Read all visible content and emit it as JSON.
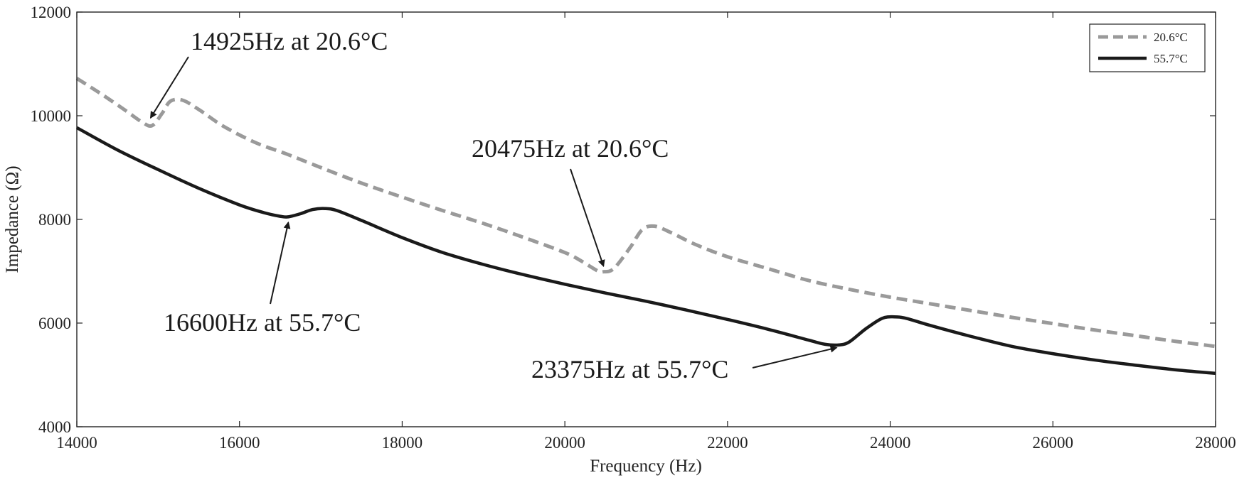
{
  "chart_data": {
    "type": "line",
    "title": "",
    "xlabel": "Frequency (Hz)",
    "ylabel": "Impedance (Ω)",
    "xlim": [
      14000,
      28000
    ],
    "ylim": [
      4000,
      12000
    ],
    "xticks": [
      14000,
      16000,
      18000,
      20000,
      22000,
      24000,
      26000,
      28000
    ],
    "yticks": [
      4000,
      6000,
      8000,
      10000,
      12000
    ],
    "grid": false,
    "legend_position": "top-right",
    "series": [
      {
        "name": "20.6°C",
        "color": "#9a9a9a",
        "style": "dashed",
        "x": [
          14000,
          14300,
          14600,
          14800,
          14925,
          15050,
          15150,
          15300,
          15500,
          15800,
          16200,
          16600,
          17000,
          17500,
          18000,
          18500,
          19000,
          19500,
          20000,
          20200,
          20400,
          20475,
          20600,
          20800,
          20950,
          21100,
          21300,
          21600,
          22000,
          22500,
          23000,
          23500,
          24000,
          24500,
          25000,
          25500,
          26000,
          26500,
          27000,
          27500,
          28000
        ],
        "y": [
          10720,
          10420,
          10100,
          9880,
          9810,
          10050,
          10280,
          10300,
          10120,
          9800,
          9480,
          9250,
          9000,
          8700,
          8430,
          8170,
          7920,
          7650,
          7360,
          7200,
          7010,
          6990,
          7050,
          7450,
          7800,
          7870,
          7750,
          7520,
          7280,
          7050,
          6820,
          6650,
          6500,
          6370,
          6240,
          6110,
          5990,
          5870,
          5760,
          5650,
          5550
        ]
      },
      {
        "name": "55.7°C",
        "color": "#1a1a1a",
        "style": "solid",
        "x": [
          14000,
          14500,
          15000,
          15500,
          16000,
          16300,
          16500,
          16600,
          16750,
          16900,
          17050,
          17200,
          17500,
          18000,
          18500,
          19000,
          19500,
          20000,
          20500,
          21000,
          21500,
          22000,
          22500,
          23000,
          23200,
          23375,
          23500,
          23700,
          23900,
          24050,
          24200,
          24500,
          25000,
          25500,
          26000,
          26500,
          27000,
          27500,
          28000
        ],
        "y": [
          9770,
          9340,
          8960,
          8600,
          8280,
          8130,
          8060,
          8050,
          8110,
          8190,
          8210,
          8170,
          7980,
          7650,
          7360,
          7130,
          6930,
          6750,
          6580,
          6420,
          6250,
          6070,
          5880,
          5670,
          5590,
          5580,
          5640,
          5890,
          6090,
          6120,
          6090,
          5950,
          5740,
          5550,
          5410,
          5290,
          5190,
          5100,
          5030
        ]
      }
    ],
    "annotations": [
      {
        "text": "14925Hz at 20.6°C",
        "x": 14925,
        "y": 9810
      },
      {
        "text": "20475Hz at 20.6°C",
        "x": 20475,
        "y": 6990
      },
      {
        "text": "16600Hz at 55.7°C",
        "x": 16600,
        "y": 8050
      },
      {
        "text": "23375Hz at 55.7°C",
        "x": 23375,
        "y": 5580
      }
    ]
  }
}
